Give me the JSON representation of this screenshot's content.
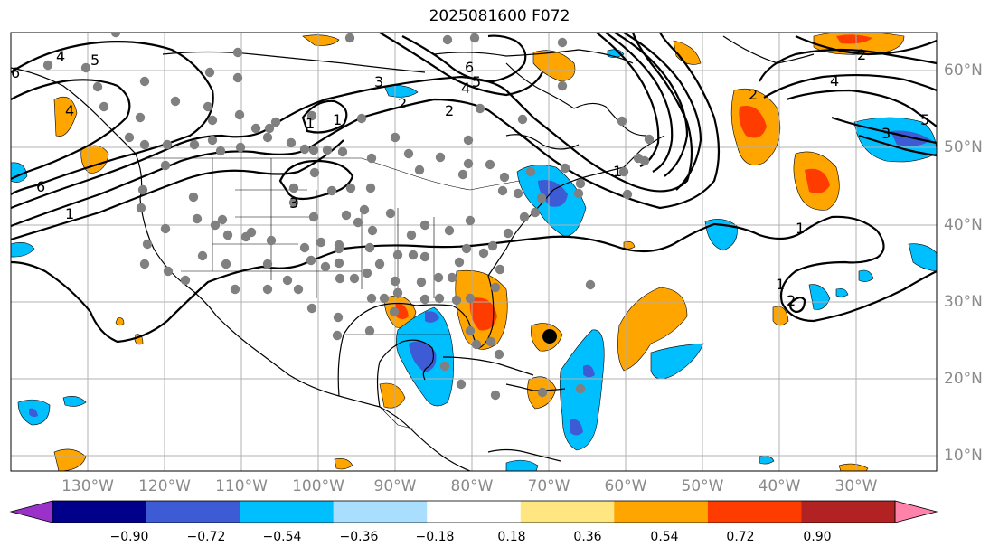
{
  "title": "2025081600 F072",
  "lon_labels": [
    "130°W",
    "120°W",
    "110°W",
    "100°W",
    "90°W",
    "80°W",
    "70°W",
    "60°W",
    "50°W",
    "40°W",
    "30°W"
  ],
  "lat_labels": [
    "60°N",
    "50°N",
    "40°N",
    "30°N",
    "20°N",
    "10°N"
  ],
  "colorbar": {
    "ticks": [
      "−0.90",
      "−0.72",
      "−0.54",
      "−0.36",
      "−0.18",
      "0.18",
      "0.36",
      "0.54",
      "0.72",
      "0.90"
    ],
    "colors": [
      "#9a31c9",
      "#00008a",
      "#3d5bd4",
      "#00bfff",
      "#aadeff",
      "#ffffff",
      "#ffe680",
      "#ffa500",
      "#ff3c00",
      "#b22222",
      "#ff82ab"
    ]
  },
  "contour_labels": [
    "4",
    "5",
    "6",
    "3",
    "2",
    "1",
    "6",
    "5",
    "4",
    "3",
    "2",
    "1",
    "2",
    "4",
    "5",
    "3",
    "2",
    "1",
    "4",
    "1",
    "1",
    "6",
    "1",
    "2"
  ],
  "palette": {
    "orange": "#ffa500",
    "red": "#ff3c00",
    "cyan": "#00bfff",
    "blue": "#3d5bd4",
    "purple": "#6a5acd",
    "station": "#808080"
  }
}
